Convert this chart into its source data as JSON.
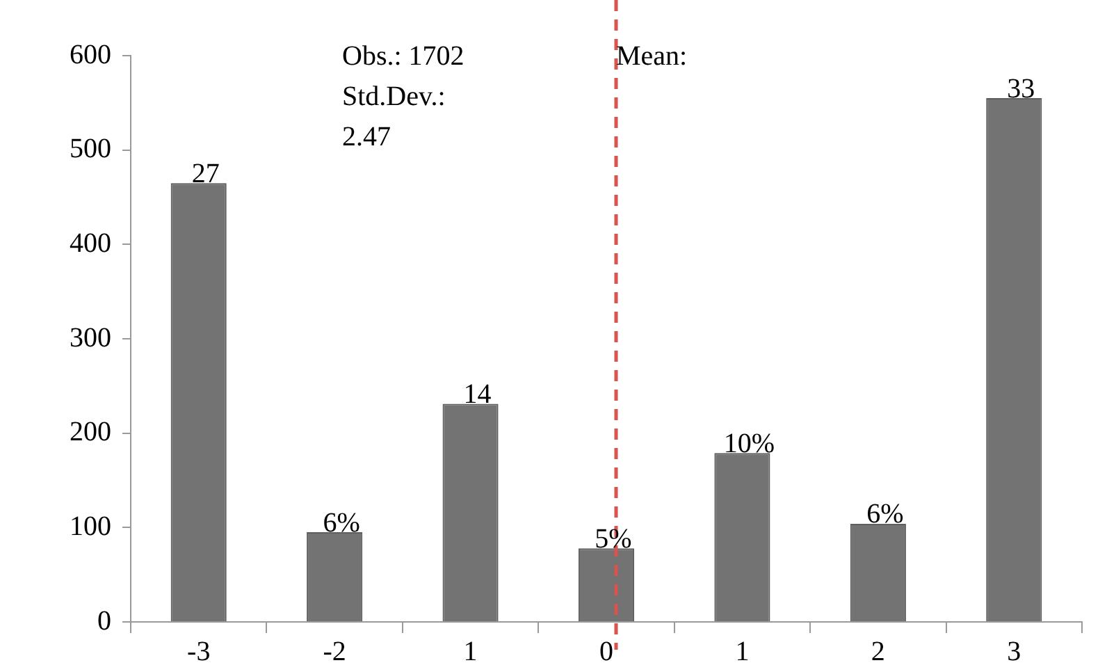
{
  "chart_data": {
    "type": "bar",
    "categories": [
      "-3",
      "-2",
      "1",
      "0",
      "1",
      "2",
      "3"
    ],
    "values": [
      465,
      95,
      231,
      78,
      179,
      104,
      555
    ],
    "color": "#737373",
    "ylim": [
      0,
      600
    ],
    "yticks": [
      0,
      100,
      200,
      300,
      400,
      500,
      600
    ],
    "grid": false,
    "legend": false,
    "ref_lines": [
      {
        "axis": "x",
        "value": "0",
        "label": "Mean:",
        "color": "#d9534f",
        "line_style": "dashed"
      }
    ],
    "annotations": [
      "Obs.: 1702",
      "Std.Dev.:",
      "2.47",
      {
        "text": "27",
        "x": "-3",
        "y": 465
      },
      {
        "text": "6%",
        "x": "-2",
        "y": 95
      },
      {
        "text": "14",
        "x": "1",
        "y": 231
      },
      {
        "text": "5%",
        "x": "0",
        "y": 78
      },
      {
        "text": "10%",
        "y": 179
      },
      {
        "text": "6%",
        "x": "2",
        "y": 104
      },
      {
        "text": "33",
        "x": "3",
        "y": 555
      }
    ]
  }
}
